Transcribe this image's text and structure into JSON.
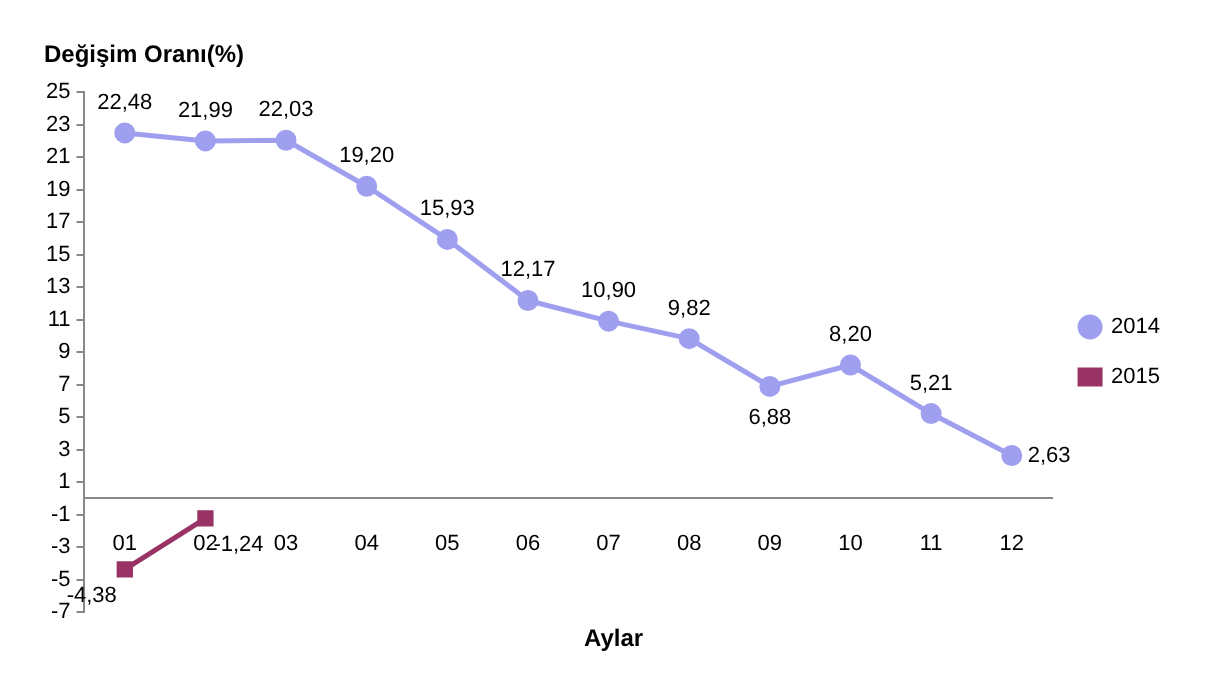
{
  "chart_data": {
    "type": "line",
    "ylabel": "Değişim Oranı(%)",
    "xlabel": "Aylar",
    "categories": [
      "01",
      "02",
      "03",
      "04",
      "05",
      "06",
      "07",
      "08",
      "09",
      "10",
      "11",
      "12"
    ],
    "series": [
      {
        "name": "2014",
        "color": "#9f9fef",
        "values": [
          22.48,
          21.99,
          22.03,
          19.2,
          15.93,
          12.17,
          10.9,
          9.82,
          6.88,
          8.2,
          5.21,
          2.63
        ],
        "value_labels": [
          "22,48",
          "21,99",
          "22,03",
          "19,20",
          "15,93",
          "12,17",
          "10,90",
          "9,82",
          "6,88",
          "8,20",
          "5,21",
          "2,63"
        ],
        "marker": "circle"
      },
      {
        "name": "2015",
        "color": "#993366",
        "values": [
          -4.38,
          -1.24,
          null,
          null,
          null,
          null,
          null,
          null,
          null,
          null,
          null,
          null
        ],
        "value_labels": [
          "-4,38",
          "-1,24",
          null,
          null,
          null,
          null,
          null,
          null,
          null,
          null,
          null,
          null
        ],
        "marker": "square"
      }
    ],
    "ylim": [
      -7,
      25
    ],
    "yticks": [
      -7,
      -5,
      -3,
      -1,
      1,
      3,
      5,
      7,
      9,
      11,
      13,
      15,
      17,
      19,
      21,
      23,
      25
    ],
    "grid": false,
    "legend": "right",
    "line_style": "solid"
  }
}
